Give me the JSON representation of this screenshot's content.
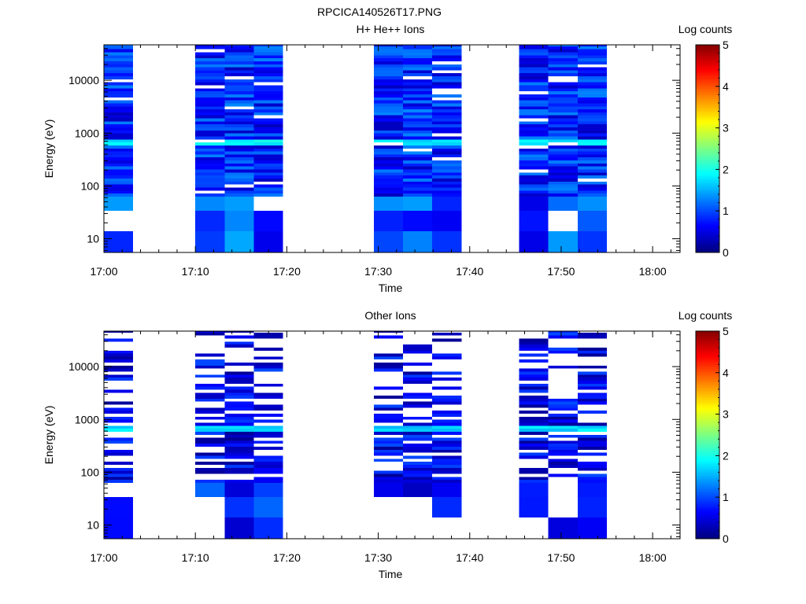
{
  "page_title": "RPCICA140526T17.PNG",
  "colorbar": {
    "label": "Log counts",
    "min": 0,
    "max": 5,
    "ticks": [
      "0",
      "1",
      "2",
      "3",
      "4",
      "5"
    ],
    "colormap": "jet"
  },
  "chart_data": [
    {
      "type": "heatmap",
      "title": "H+ He++ Ions",
      "xlabel": "Time",
      "ylabel": "Energy (eV)",
      "y_scale": "log",
      "xlim": [
        "17:00",
        "18:03"
      ],
      "ylim": [
        5.5,
        47000
      ],
      "x_ticks": [
        "17:00",
        "17:10",
        "17:20",
        "17:30",
        "17:40",
        "17:50",
        "18:00"
      ],
      "y_ticks": [
        "10",
        "100",
        "1000",
        "10000"
      ],
      "z_label": "Log counts",
      "zlim": [
        0,
        5
      ],
      "time_columns": [
        {
          "start": "17:00.0",
          "end": "17:03.2"
        },
        {
          "start": "17:10.0",
          "end": "17:13.2"
        },
        {
          "start": "17:13.2",
          "end": "17:16.4"
        },
        {
          "start": "17:16.4",
          "end": "17:19.6"
        },
        {
          "start": "17:29.5",
          "end": "17:32.7"
        },
        {
          "start": "17:32.7",
          "end": "17:35.9"
        },
        {
          "start": "17:35.9",
          "end": "17:39.1"
        },
        {
          "start": "17:45.4",
          "end": "17:48.6"
        },
        {
          "start": "17:48.6",
          "end": "17:51.8"
        },
        {
          "start": "17:51.8",
          "end": "17:55.0"
        }
      ],
      "gaps": [
        [
          "17:03.2",
          "17:10.0"
        ],
        [
          "17:19.6",
          "17:29.5"
        ],
        [
          "17:39.1",
          "17:45.4"
        ],
        [
          "17:55.0",
          "18:03"
        ]
      ],
      "peak_energy_band_eV": [
        580,
        740
      ],
      "peak_log_counts": 2.0,
      "typical_log_counts": [
        0.3,
        1.3
      ]
    },
    {
      "type": "heatmap",
      "title": "Other Ions",
      "xlabel": "Time",
      "ylabel": "Energy (eV)",
      "y_scale": "log",
      "xlim": [
        "17:00",
        "18:03"
      ],
      "ylim": [
        5.5,
        47000
      ],
      "x_ticks": [
        "17:00",
        "17:10",
        "17:20",
        "17:30",
        "17:40",
        "17:50",
        "18:00"
      ],
      "y_ticks": [
        "10",
        "100",
        "1000",
        "10000"
      ],
      "z_label": "Log counts",
      "zlim": [
        0,
        5
      ],
      "time_columns": [
        {
          "start": "17:00.0",
          "end": "17:03.2"
        },
        {
          "start": "17:10.0",
          "end": "17:13.2"
        },
        {
          "start": "17:13.2",
          "end": "17:16.4"
        },
        {
          "start": "17:16.4",
          "end": "17:19.6"
        },
        {
          "start": "17:29.5",
          "end": "17:32.7"
        },
        {
          "start": "17:32.7",
          "end": "17:35.9"
        },
        {
          "start": "17:35.9",
          "end": "17:39.1"
        },
        {
          "start": "17:45.4",
          "end": "17:48.6"
        },
        {
          "start": "17:48.6",
          "end": "17:51.8"
        },
        {
          "start": "17:51.8",
          "end": "17:55.0"
        }
      ],
      "peak_energy_band_eV": [
        580,
        740
      ],
      "peak_log_counts": 1.9,
      "typical_log_counts": [
        0.1,
        1.0
      ],
      "sparse": true
    }
  ]
}
